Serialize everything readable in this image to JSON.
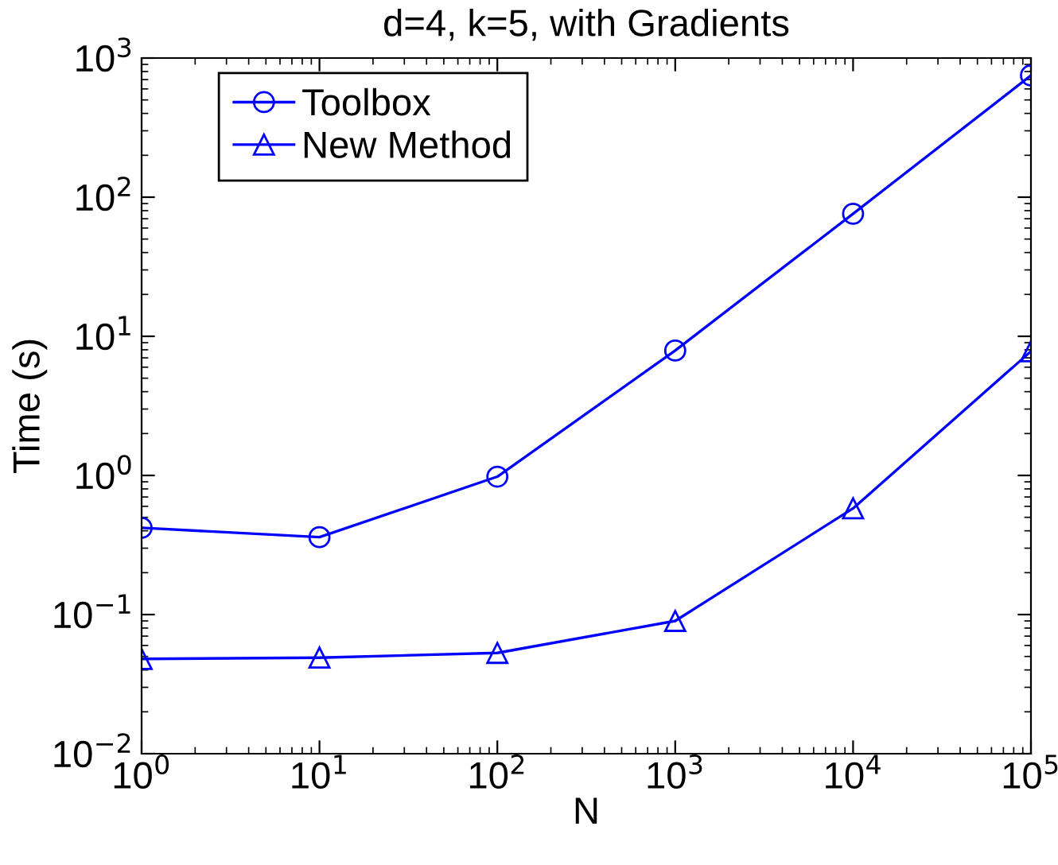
{
  "chart_data": {
    "type": "line",
    "title": "d=4, k=5, with Gradients",
    "xlabel": "N",
    "ylabel": "Time (s)",
    "x": [
      1,
      10,
      100,
      1000,
      10000,
      100000
    ],
    "series": [
      {
        "name": "Toolbox",
        "color": "#0000ff",
        "marker": "circle",
        "values": [
          0.42,
          0.36,
          0.98,
          7.9,
          76,
          750
        ]
      },
      {
        "name": "New Method",
        "color": "#0000ff",
        "marker": "triangle",
        "values": [
          0.048,
          0.049,
          0.053,
          0.09,
          0.58,
          7.8
        ]
      }
    ],
    "log": "xy",
    "xlim": [
      1,
      100000
    ],
    "ylim": [
      0.01,
      1000
    ],
    "xticks": [
      {
        "value": 1,
        "label": "10$^{0}$"
      },
      {
        "value": 10,
        "label": "10$^{1}$"
      },
      {
        "value": 100,
        "label": "10$^{2}$"
      },
      {
        "value": 1000,
        "label": "10$^{3}$"
      },
      {
        "value": 10000,
        "label": "10$^{4}$"
      },
      {
        "value": 100000,
        "label": "10$^{5}$"
      }
    ],
    "yticks": [
      {
        "value": 0.01,
        "label": "10$^{−2}$"
      },
      {
        "value": 0.1,
        "label": "10$^{−1}$"
      },
      {
        "value": 1,
        "label": "10$^{0}$"
      },
      {
        "value": 10,
        "label": "10$^{1}$"
      },
      {
        "value": 100,
        "label": "10$^{2}$"
      },
      {
        "value": 1000,
        "label": "10$^{3}$"
      }
    ],
    "grid": false,
    "legend": "top left",
    "line_style": "solid"
  }
}
